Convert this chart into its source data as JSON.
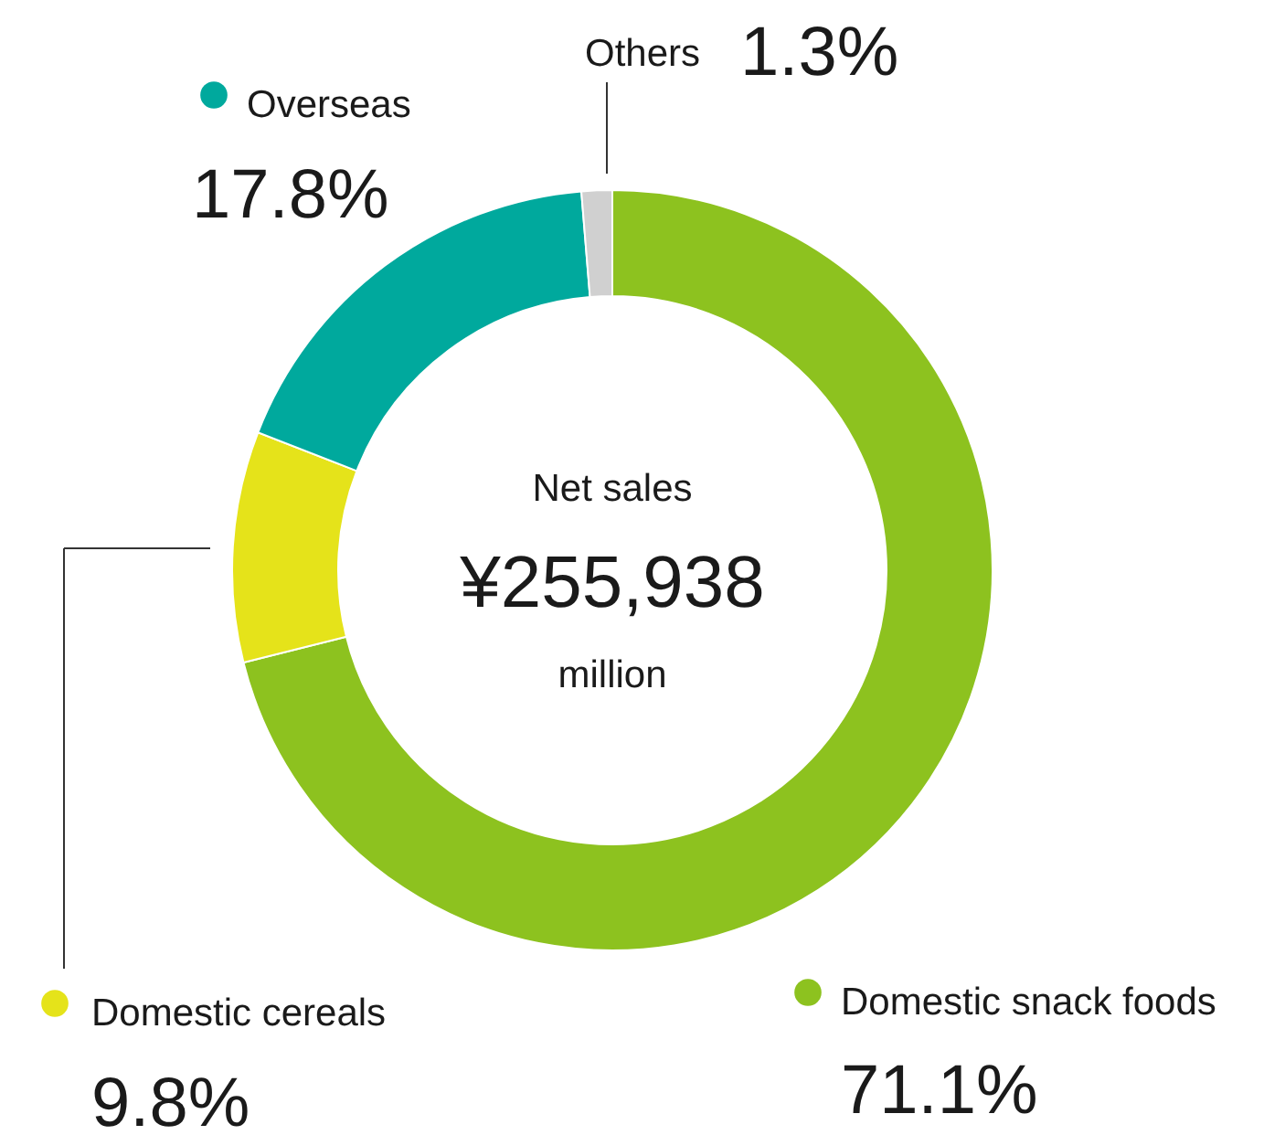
{
  "chart_data": {
    "type": "donut",
    "categories": [
      "Domestic snack foods",
      "Domestic cereals",
      "Overseas",
      "Others"
    ],
    "values": [
      71.1,
      9.8,
      17.8,
      1.3
    ],
    "colors": [
      "#8dc21f",
      "#e5e31a",
      "#00a99d",
      "#d0d0d0"
    ],
    "value_labels": [
      "71.1%",
      "9.8%",
      "17.8%",
      "1.3%"
    ],
    "legend": "top right",
    "annotations": [
      "Net sales",
      "¥255,938",
      "million"
    ]
  }
}
